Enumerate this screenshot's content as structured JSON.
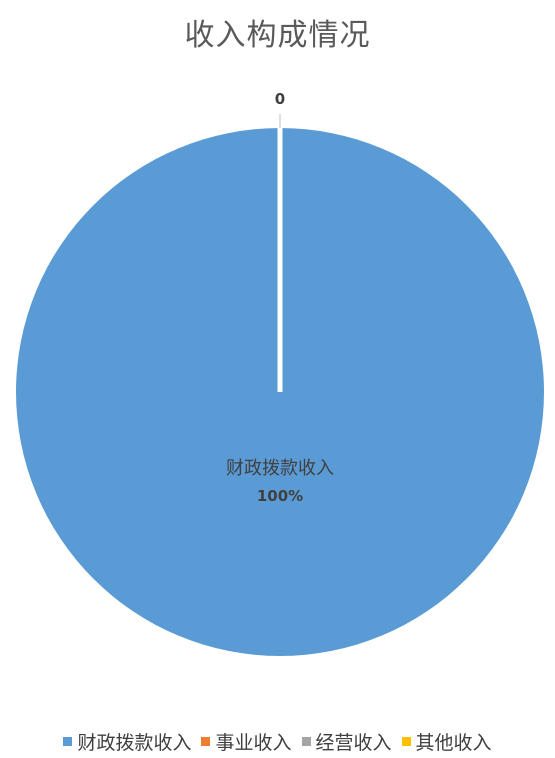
{
  "chart_data": {
    "type": "pie",
    "title": "收入构成情况",
    "categories": [
      "财政拨款收入",
      "事业收入",
      "经营收入",
      "其他收入"
    ],
    "values": [
      100,
      0,
      0,
      0
    ],
    "colors": [
      "#5b9bd5",
      "#ed7d31",
      "#a5a5a5",
      "#ffc000"
    ],
    "data_labels": {
      "main_name": "财政拨款收入",
      "main_percent": "100%",
      "zero_label": "0"
    },
    "legend_position": "bottom"
  }
}
